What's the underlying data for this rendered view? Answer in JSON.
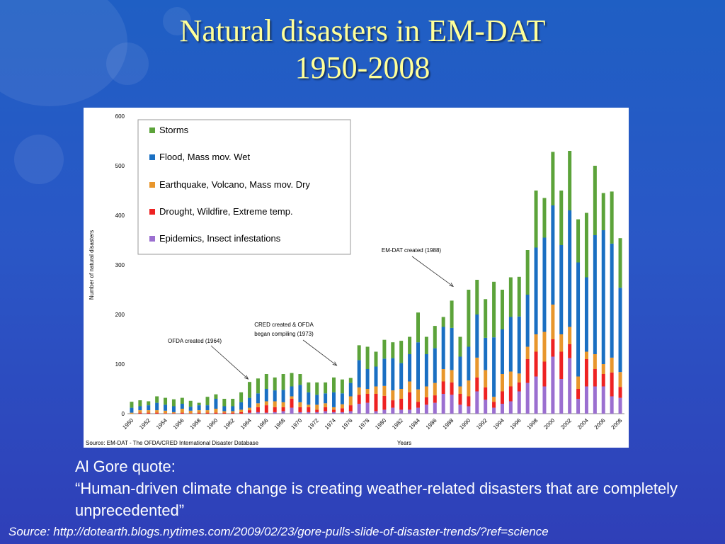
{
  "slide": {
    "title_line1": "Natural disasters in EM-DAT",
    "title_line2": "1950-2008",
    "quote_heading": "Al Gore quote:",
    "quote_text": "“Human-driven climate change is creating weather-related disasters that are completely unprecedented”",
    "source": "Source: http://dotearth.blogs.nytimes.com/2009/02/23/gore-pulls-slide-of-disaster-trends/?ref=science"
  },
  "chart_data": {
    "type": "bar",
    "stacked": true,
    "xlabel": "Years",
    "ylabel": "Number of natural disasters",
    "ylim": [
      0,
      600
    ],
    "yticks": [
      0,
      100,
      200,
      300,
      400,
      500,
      600
    ],
    "source_note": "Source: EM-DAT - The OFDA/CRED International Disaster Database",
    "legend_position": "top-left",
    "categories": [
      1950,
      1951,
      1952,
      1953,
      1954,
      1955,
      1956,
      1957,
      1958,
      1959,
      1960,
      1961,
      1962,
      1963,
      1964,
      1965,
      1966,
      1967,
      1968,
      1969,
      1970,
      1971,
      1972,
      1973,
      1974,
      1975,
      1976,
      1977,
      1978,
      1979,
      1980,
      1981,
      1982,
      1983,
      1984,
      1985,
      1986,
      1987,
      1988,
      1989,
      1990,
      1991,
      1992,
      1993,
      1994,
      1995,
      1996,
      1997,
      1998,
      1999,
      2000,
      2001,
      2002,
      2003,
      2004,
      2005,
      2006,
      2007,
      2008
    ],
    "series": [
      {
        "name": "Epidemics, Insect infestations",
        "color": "#9b6fd0",
        "values": [
          0,
          0,
          0,
          0,
          0,
          0,
          0,
          0,
          0,
          0,
          0,
          0,
          0,
          0,
          2,
          3,
          2,
          3,
          5,
          12,
          3,
          3,
          3,
          5,
          3,
          3,
          5,
          20,
          22,
          5,
          8,
          12,
          8,
          8,
          12,
          18,
          22,
          40,
          38,
          18,
          15,
          45,
          28,
          12,
          20,
          25,
          45,
          62,
          75,
          55,
          115,
          70,
          112,
          30,
          55,
          55,
          55,
          35,
          32
        ]
      },
      {
        "name": "Drought, Wildfire, Extreme temp.",
        "color": "#ee2222",
        "values": [
          0,
          2,
          2,
          2,
          1,
          1,
          2,
          1,
          2,
          2,
          2,
          2,
          2,
          3,
          5,
          10,
          15,
          10,
          8,
          18,
          10,
          10,
          5,
          8,
          5,
          8,
          12,
          18,
          18,
          35,
          28,
          15,
          22,
          35,
          12,
          15,
          15,
          25,
          25,
          22,
          20,
          28,
          25,
          12,
          25,
          30,
          18,
          48,
          50,
          50,
          35,
          55,
          28,
          20,
          55,
          35,
          25,
          48,
          22
        ]
      },
      {
        "name": "Earthquake, Volcano, Mass mov. Dry",
        "color": "#e8962c",
        "values": [
          2,
          5,
          5,
          5,
          5,
          2,
          8,
          5,
          5,
          5,
          8,
          3,
          3,
          5,
          5,
          8,
          8,
          12,
          10,
          5,
          10,
          5,
          10,
          8,
          5,
          8,
          18,
          15,
          10,
          15,
          20,
          20,
          20,
          22,
          25,
          22,
          25,
          25,
          25,
          15,
          32,
          40,
          35,
          10,
          35,
          30,
          18,
          25,
          35,
          60,
          70,
          35,
          35,
          25,
          15,
          30,
          20,
          30,
          30
        ]
      },
      {
        "name": "Flood, Mass mov. Wet",
        "color": "#1a6fc2",
        "values": [
          10,
          8,
          10,
          15,
          12,
          12,
          10,
          8,
          10,
          10,
          20,
          10,
          10,
          15,
          20,
          20,
          25,
          22,
          25,
          20,
          35,
          25,
          20,
          20,
          30,
          22,
          27,
          55,
          40,
          40,
          55,
          65,
          52,
          55,
          95,
          65,
          70,
          85,
          85,
          60,
          68,
          87,
          65,
          120,
          90,
          110,
          115,
          105,
          175,
          190,
          200,
          180,
          235,
          230,
          150,
          240,
          270,
          230,
          170
        ]
      },
      {
        "name": "Storms",
        "color": "#5ca33a",
        "values": [
          12,
          12,
          8,
          13,
          14,
          14,
          12,
          12,
          5,
          17,
          9,
          15,
          15,
          20,
          32,
          30,
          30,
          26,
          32,
          27,
          22,
          20,
          25,
          22,
          30,
          28,
          10,
          30,
          45,
          30,
          38,
          32,
          45,
          35,
          60,
          35,
          45,
          20,
          55,
          40,
          115,
          70,
          78,
          112,
          80,
          80,
          80,
          90,
          115,
          80,
          108,
          110,
          120,
          87,
          130,
          140,
          75,
          105,
          100
        ]
      }
    ],
    "annotations": [
      {
        "text": "OFDA created (1964)",
        "target_year": 1964
      },
      {
        "text": "CRED created & OFDA began compiling (1973)",
        "lines": [
          "CRED created & OFDA",
          "began compiling (1973)"
        ],
        "target_year": 1973
      },
      {
        "text": "EM-DAT created (1988)",
        "target_year": 1988
      }
    ]
  }
}
